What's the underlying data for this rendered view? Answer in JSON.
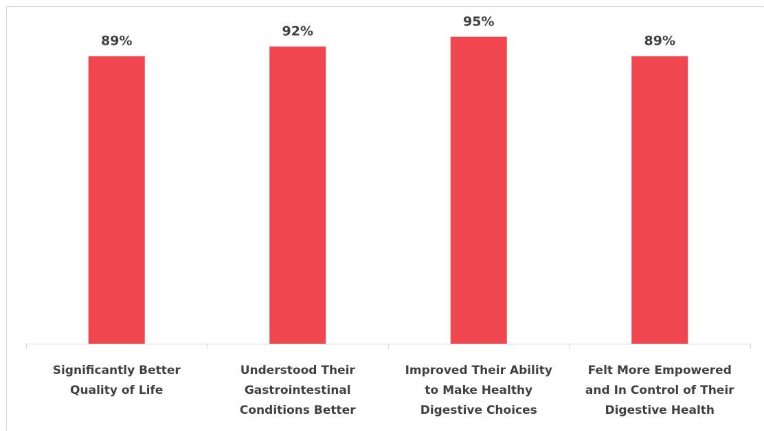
{
  "chart_data": {
    "type": "bar",
    "categories": [
      [
        "Significantly Better",
        "Quality of Life"
      ],
      [
        "Understood Their",
        "Gastrointestinal",
        "Conditions Better"
      ],
      [
        "Improved Their Ability",
        "to Make Healthy",
        "Digestive Choices"
      ],
      [
        "Felt More Empowered",
        "and In Control of Their",
        "Digestive Health"
      ]
    ],
    "values": [
      89,
      92,
      95,
      89
    ],
    "value_labels": [
      "89%",
      "92%",
      "95%",
      "89%"
    ],
    "unit": "%",
    "bar_color": "#ef4650",
    "ylim": [
      0,
      100
    ],
    "grid": false,
    "legend": "none"
  }
}
